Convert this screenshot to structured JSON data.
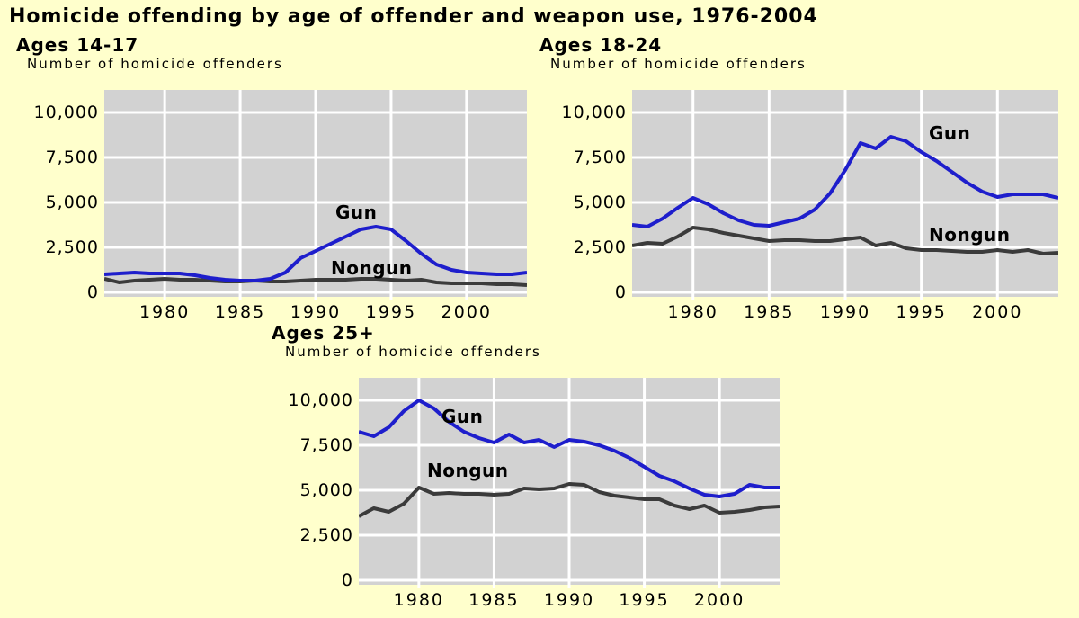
{
  "title": "Homicide offending by age of offender and weapon use, 1976-2004",
  "colors": {
    "background": "#ffffcc",
    "plot_background": "#d2d2d2",
    "gridline": "#ffffff",
    "gun_line": "#1e1ecc",
    "nongun_line": "#3b3b3b",
    "text": "#000000"
  },
  "chart_data": [
    {
      "type": "line",
      "age_group": "Ages 14-17",
      "y_axis_title": "Number of homicide offenders",
      "x": [
        1976,
        1977,
        1978,
        1979,
        1980,
        1981,
        1982,
        1983,
        1984,
        1985,
        1986,
        1987,
        1988,
        1989,
        1990,
        1991,
        1992,
        1993,
        1994,
        1995,
        1996,
        1997,
        1998,
        1999,
        2000,
        2001,
        2002,
        2003,
        2004
      ],
      "series": [
        {
          "name": "Gun",
          "color_key": "gun_line",
          "values": [
            1000,
            1050,
            1100,
            1050,
            1050,
            1050,
            950,
            800,
            700,
            650,
            650,
            750,
            1100,
            1900,
            2300,
            2700,
            3100,
            3500,
            3650,
            3500,
            2850,
            2150,
            1550,
            1250,
            1100,
            1050,
            1000,
            1000,
            1100
          ]
        },
        {
          "name": "Nongun",
          "color_key": "nongun_line",
          "values": [
            750,
            550,
            650,
            700,
            750,
            700,
            700,
            650,
            600,
            600,
            650,
            600,
            600,
            650,
            700,
            700,
            700,
            750,
            750,
            700,
            650,
            700,
            550,
            500,
            500,
            500,
            450,
            450,
            400
          ]
        }
      ],
      "xlim": [
        1976,
        2004
      ],
      "ylim": [
        0,
        11250
      ],
      "y_ticks": [
        0,
        2500,
        5000,
        7500,
        10000
      ],
      "y_tick_labels": [
        "0",
        "2,500",
        "5,000",
        "7,500",
        "10,000"
      ],
      "x_ticks": [
        1980,
        1985,
        1990,
        1995,
        2000
      ],
      "x_tick_labels": [
        "1980",
        "1985",
        "1990",
        "1995",
        "2000"
      ],
      "grid": true,
      "legend": "inline-labels"
    },
    {
      "type": "line",
      "age_group": "Ages 18-24",
      "y_axis_title": "Number of homicide offenders",
      "x": [
        1976,
        1977,
        1978,
        1979,
        1980,
        1981,
        1982,
        1983,
        1984,
        1985,
        1986,
        1987,
        1988,
        1989,
        1990,
        1991,
        1992,
        1993,
        1994,
        1995,
        1996,
        1997,
        1998,
        1999,
        2000,
        2001,
        2002,
        2003,
        2004
      ],
      "series": [
        {
          "name": "Gun",
          "color_key": "gun_line",
          "values": [
            3750,
            3650,
            4100,
            4700,
            5250,
            4900,
            4400,
            4000,
            3750,
            3700,
            3900,
            4100,
            4600,
            5500,
            6800,
            8300,
            8000,
            8650,
            8400,
            7800,
            7300,
            6700,
            6100,
            5600,
            5300,
            5450,
            5450,
            5450,
            5250
          ]
        },
        {
          "name": "Nongun",
          "color_key": "nongun_line",
          "values": [
            2600,
            2750,
            2700,
            3100,
            3600,
            3500,
            3300,
            3150,
            3000,
            2850,
            2900,
            2900,
            2850,
            2850,
            2950,
            3050,
            2600,
            2750,
            2450,
            2350,
            2350,
            2300,
            2250,
            2250,
            2350,
            2250,
            2350,
            2150,
            2200
          ]
        }
      ],
      "xlim": [
        1976,
        2004
      ],
      "ylim": [
        0,
        11250
      ],
      "y_ticks": [
        0,
        2500,
        5000,
        7500,
        10000
      ],
      "y_tick_labels": [
        "0",
        "2,500",
        "5,000",
        "7,500",
        "10,000"
      ],
      "x_ticks": [
        1980,
        1985,
        1990,
        1995,
        2000
      ],
      "x_tick_labels": [
        "1980",
        "1985",
        "1990",
        "1995",
        "2000"
      ],
      "grid": true,
      "legend": "inline-labels"
    },
    {
      "type": "line",
      "age_group": "Ages 25+",
      "y_axis_title": "Number of homicide offenders",
      "x": [
        1976,
        1977,
        1978,
        1979,
        1980,
        1981,
        1982,
        1983,
        1984,
        1985,
        1986,
        1987,
        1988,
        1989,
        1990,
        1991,
        1992,
        1993,
        1994,
        1995,
        1996,
        1997,
        1998,
        1999,
        2000,
        2001,
        2002,
        2003,
        2004
      ],
      "series": [
        {
          "name": "Gun",
          "color_key": "gun_line",
          "values": [
            8250,
            8000,
            8500,
            9400,
            10000,
            9550,
            8800,
            8250,
            7900,
            7650,
            8100,
            7650,
            7800,
            7400,
            7800,
            7700,
            7500,
            7200,
            6800,
            6300,
            5800,
            5500,
            5100,
            4750,
            4650,
            4800,
            5300,
            5150,
            5150
          ]
        },
        {
          "name": "Nongun",
          "color_key": "nongun_line",
          "values": [
            3550,
            4000,
            3800,
            4250,
            5150,
            4800,
            4850,
            4800,
            4800,
            4750,
            4800,
            5100,
            5050,
            5100,
            5350,
            5300,
            4900,
            4700,
            4600,
            4500,
            4500,
            4150,
            3950,
            4150,
            3750,
            3800,
            3900,
            4050,
            4100
          ]
        }
      ],
      "xlim": [
        1976,
        2004
      ],
      "ylim": [
        0,
        11250
      ],
      "y_ticks": [
        0,
        2500,
        5000,
        7500,
        10000
      ],
      "y_tick_labels": [
        "0",
        "2,500",
        "5,000",
        "7,500",
        "10,000"
      ],
      "x_ticks": [
        1980,
        1985,
        1990,
        1995,
        2000
      ],
      "x_tick_labels": [
        "1980",
        "1985",
        "1990",
        "1995",
        "2000"
      ],
      "grid": true,
      "legend": "inline-labels"
    }
  ]
}
